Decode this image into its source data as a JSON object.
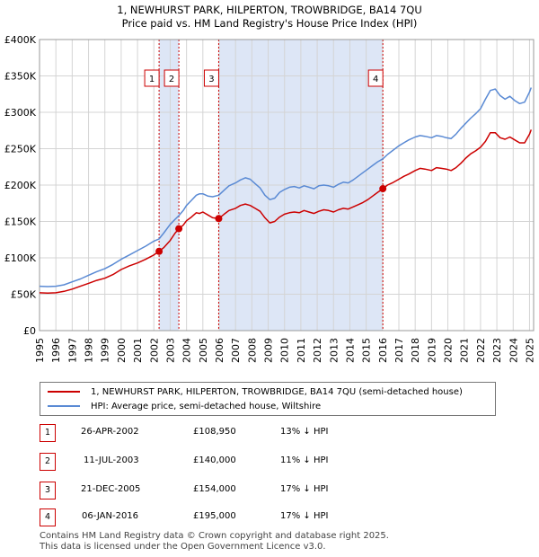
{
  "title_line1": "1, NEWHURST PARK, HILPERTON, TROWBRIDGE, BA14 7QU",
  "title_line2": "Price paid vs. HM Land Registry's House Price Index (HPI)",
  "colors": {
    "price": "#cc0000",
    "hpi": "#5a8ad4",
    "shade": "#dde6f6",
    "marker_border": "#cc0000"
  },
  "chart_data": {
    "type": "line",
    "xlim": [
      1995,
      2025.25
    ],
    "ylim": [
      0,
      400000
    ],
    "y_ticks": [
      {
        "value": 0,
        "label": "£0"
      },
      {
        "value": 50000,
        "label": "£50K"
      },
      {
        "value": 100000,
        "label": "£100K"
      },
      {
        "value": 150000,
        "label": "£150K"
      },
      {
        "value": 200000,
        "label": "£200K"
      },
      {
        "value": 250000,
        "label": "£250K"
      },
      {
        "value": 300000,
        "label": "£300K"
      },
      {
        "value": 350000,
        "label": "£350K"
      },
      {
        "value": 400000,
        "label": "£400K"
      }
    ],
    "x_ticks": [
      "1995",
      "1996",
      "1997",
      "1998",
      "1999",
      "2000",
      "2001",
      "2002",
      "2003",
      "2004",
      "2005",
      "2006",
      "2007",
      "2008",
      "2009",
      "2010",
      "2011",
      "2012",
      "2013",
      "2014",
      "2015",
      "2016",
      "2017",
      "2018",
      "2019",
      "2020",
      "2021",
      "2022",
      "2023",
      "2024",
      "2025"
    ],
    "grid": true,
    "shaded_ranges": [
      [
        2002.32,
        2003.53
      ],
      [
        2005.97,
        2016.02
      ]
    ],
    "series": [
      {
        "name": "1, NEWHURST PARK, HILPERTON, TROWBRIDGE, BA14 7QU (semi-detached house)",
        "key": "price",
        "x": [
          1995,
          1995.5,
          1996,
          1996.5,
          1997,
          1997.5,
          1998,
          1998.5,
          1999,
          1999.5,
          2000,
          2000.5,
          2001,
          2001.5,
          2002,
          2002.32,
          2002.6,
          2003,
          2003.3,
          2003.53,
          2003.8,
          2004,
          2004.3,
          2004.6,
          2004.8,
          2005,
          2005.3,
          2005.6,
          2005.97,
          2006.3,
          2006.6,
          2007,
          2007.3,
          2007.6,
          2007.9,
          2008.2,
          2008.5,
          2008.8,
          2009.1,
          2009.4,
          2009.7,
          2010,
          2010.3,
          2010.6,
          2010.9,
          2011.2,
          2011.5,
          2011.8,
          2012.1,
          2012.4,
          2012.7,
          2013,
          2013.3,
          2013.6,
          2013.9,
          2014.2,
          2014.5,
          2014.8,
          2015.1,
          2015.4,
          2015.7,
          2016.02,
          2016.3,
          2016.6,
          2017,
          2017.3,
          2017.6,
          2018,
          2018.3,
          2018.6,
          2019,
          2019.3,
          2019.6,
          2019.9,
          2020.2,
          2020.5,
          2020.8,
          2021.1,
          2021.4,
          2021.7,
          2022,
          2022.3,
          2022.6,
          2022.9,
          2023.2,
          2023.5,
          2023.8,
          2024.1,
          2024.4,
          2024.7,
          2025,
          2025.1
        ],
        "y": [
          52000,
          51500,
          52000,
          54000,
          57000,
          61000,
          65000,
          69000,
          72000,
          77000,
          84000,
          89000,
          93000,
          98000,
          104000,
          108950,
          114000,
          124000,
          134000,
          140000,
          145000,
          151000,
          156000,
          162000,
          161000,
          163000,
          159000,
          155000,
          154000,
          160000,
          165000,
          168000,
          172000,
          174000,
          172000,
          168000,
          164000,
          155000,
          148000,
          150000,
          156000,
          160000,
          162000,
          163000,
          162000,
          165000,
          163000,
          161000,
          164000,
          166000,
          165000,
          163000,
          166000,
          168000,
          167000,
          170000,
          173000,
          176000,
          180000,
          185000,
          190000,
          195000,
          200000,
          203000,
          208000,
          212000,
          215000,
          220000,
          223000,
          222000,
          220000,
          224000,
          223000,
          222000,
          220000,
          224000,
          230000,
          237000,
          243000,
          247000,
          252000,
          260000,
          272000,
          272000,
          265000,
          263000,
          266000,
          262000,
          258000,
          258000,
          270000,
          276000
        ]
      },
      {
        "name": "HPI: Average price, semi-detached house, Wiltshire",
        "key": "hpi",
        "x": [
          1995,
          1995.5,
          1996,
          1996.5,
          1997,
          1997.5,
          1998,
          1998.5,
          1999,
          1999.5,
          2000,
          2000.5,
          2001,
          2001.5,
          2002,
          2002.32,
          2002.6,
          2003,
          2003.3,
          2003.53,
          2003.8,
          2004,
          2004.3,
          2004.6,
          2004.8,
          2005,
          2005.3,
          2005.6,
          2005.97,
          2006.3,
          2006.6,
          2007,
          2007.3,
          2007.6,
          2007.9,
          2008.2,
          2008.5,
          2008.8,
          2009.1,
          2009.4,
          2009.7,
          2010,
          2010.3,
          2010.6,
          2010.9,
          2011.2,
          2011.5,
          2011.8,
          2012.1,
          2012.4,
          2012.7,
          2013,
          2013.3,
          2013.6,
          2013.9,
          2014.2,
          2014.5,
          2014.8,
          2015.1,
          2015.4,
          2015.7,
          2016.02,
          2016.3,
          2016.6,
          2017,
          2017.3,
          2017.6,
          2018,
          2018.3,
          2018.6,
          2019,
          2019.3,
          2019.6,
          2019.9,
          2020.2,
          2020.5,
          2020.8,
          2021.1,
          2021.4,
          2021.7,
          2022,
          2022.3,
          2022.6,
          2022.9,
          2023.2,
          2023.5,
          2023.8,
          2024.1,
          2024.4,
          2024.7,
          2025,
          2025.1
        ],
        "y": [
          61000,
          60500,
          61000,
          63000,
          67000,
          71000,
          76000,
          81000,
          85000,
          91000,
          98000,
          104000,
          110000,
          116000,
          123000,
          126000,
          134000,
          146000,
          153000,
          158000,
          165000,
          172000,
          179000,
          186000,
          188000,
          188000,
          185000,
          184000,
          186000,
          193000,
          199000,
          203000,
          207000,
          210000,
          208000,
          202000,
          196000,
          186000,
          180000,
          182000,
          190000,
          194000,
          197000,
          198000,
          196000,
          199000,
          197000,
          195000,
          199000,
          200000,
          199000,
          197000,
          201000,
          204000,
          203000,
          207000,
          212000,
          217000,
          222000,
          227000,
          232000,
          236000,
          242000,
          247000,
          254000,
          258000,
          262000,
          266000,
          268000,
          267000,
          265000,
          268000,
          267000,
          265000,
          264000,
          270000,
          278000,
          285000,
          292000,
          298000,
          305000,
          318000,
          330000,
          332000,
          323000,
          318000,
          322000,
          316000,
          312000,
          314000,
          328000,
          334000
        ]
      }
    ],
    "transactions": [
      {
        "num": "1",
        "x": 2002.32,
        "y": 108950
      },
      {
        "num": "2",
        "x": 2003.53,
        "y": 140000
      },
      {
        "num": "3",
        "x": 2005.97,
        "y": 154000
      },
      {
        "num": "4",
        "x": 2016.02,
        "y": 195000
      }
    ]
  },
  "legend": {
    "price_label": "1, NEWHURST PARK, HILPERTON, TROWBRIDGE, BA14 7QU (semi-detached house)",
    "hpi_label": "HPI: Average price, semi-detached house, Wiltshire"
  },
  "table": [
    {
      "num": "1",
      "date": "26-APR-2002",
      "price": "£108,950",
      "hpi": "13% ↓ HPI"
    },
    {
      "num": "2",
      "date": "11-JUL-2003",
      "price": "£140,000",
      "hpi": "11% ↓ HPI"
    },
    {
      "num": "3",
      "date": "21-DEC-2005",
      "price": "£154,000",
      "hpi": "17% ↓ HPI"
    },
    {
      "num": "4",
      "date": "06-JAN-2016",
      "price": "£195,000",
      "hpi": "17% ↓ HPI"
    }
  ],
  "footer": {
    "line1": "Contains HM Land Registry data © Crown copyright and database right 2025.",
    "line2": "This data is licensed under the Open Government Licence v3.0."
  }
}
